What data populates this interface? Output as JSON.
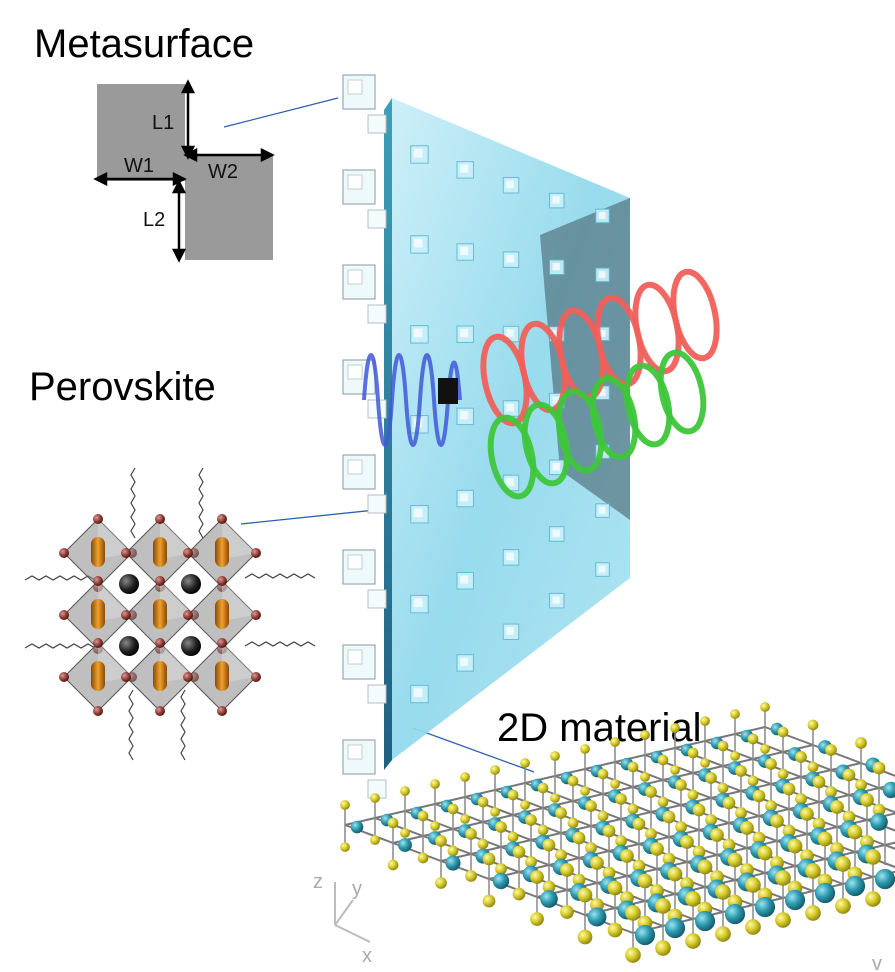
{
  "labels": {
    "metasurface": "Metasurface",
    "perovskite": "Perovskite",
    "material2d": "2D material"
  },
  "unit_cell": {
    "l1": "L1",
    "l2": "L2",
    "w1": "W1",
    "w2": "W2"
  },
  "axes": {
    "z": "z",
    "y": "y",
    "x": "x",
    "corner_mark": "v"
  },
  "colors": {
    "panel": "#8fd8ec",
    "pillar": "#bfeaf5",
    "incident_wave": "#3f58d8",
    "helix_red": "#f0605a",
    "helix_green": "#3ec63a",
    "connector": "#2f5fb0",
    "sulfur": "#d6cc2a",
    "metal": "#2e9bb0",
    "halide": "#8f3a34",
    "lead": "#e08a1a",
    "cation": "#222222",
    "unit_cell_fill": "#9a9a9a"
  }
}
